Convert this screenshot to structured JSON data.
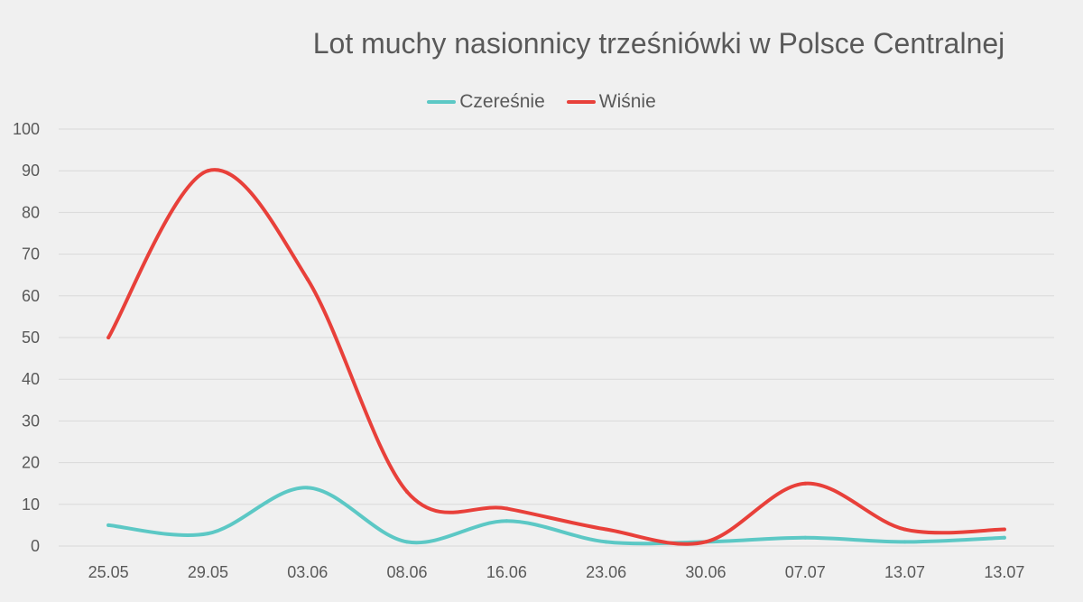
{
  "chart_data": {
    "type": "line",
    "title": "Lot muchy nasionnicy trześniówki w Polsce Centralnej",
    "xlabel": "",
    "ylabel": "",
    "categories": [
      "25.05",
      "29.05",
      "03.06",
      "08.06",
      "16.06",
      "23.06",
      "30.06",
      "07.07",
      "13.07",
      "13.07"
    ],
    "ylim": [
      0,
      100
    ],
    "yticks": [
      "0",
      "10",
      "20",
      "30",
      "40",
      "50",
      "60",
      "70",
      "80",
      "90",
      "100"
    ],
    "grid": true,
    "legend_position": "top",
    "smooth": true,
    "series": [
      {
        "name": "Czereśnie",
        "color": "#5cc8c5",
        "values": [
          5,
          3,
          14,
          1,
          6,
          1,
          1,
          2,
          1,
          2
        ]
      },
      {
        "name": "Wiśnie",
        "color": "#e8403a",
        "values": [
          50,
          90,
          64,
          13,
          9,
          4,
          1,
          15,
          4,
          4
        ]
      }
    ],
    "colors": {
      "grid": "#d9d9d9",
      "axis": "#d9d9d9",
      "text": "#595959",
      "background": "#f0f0f0"
    }
  }
}
